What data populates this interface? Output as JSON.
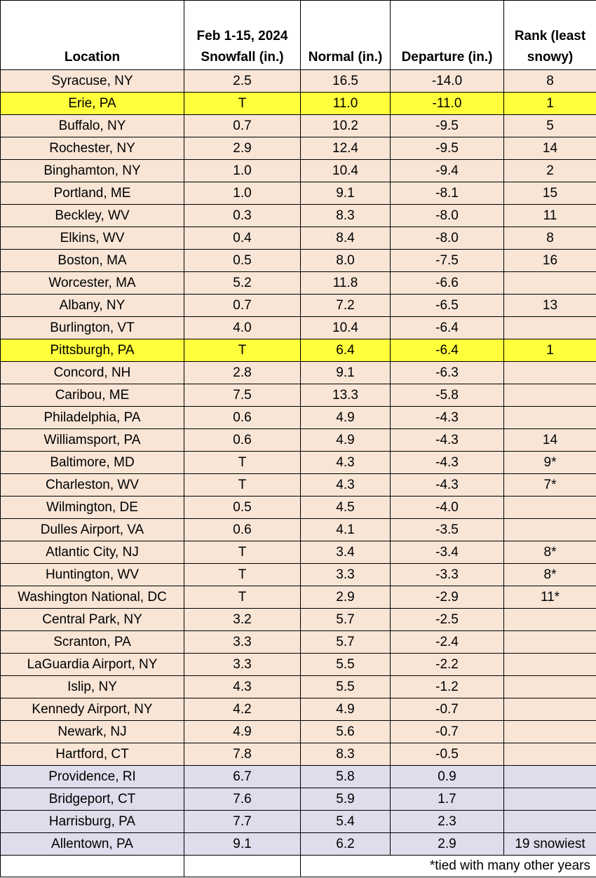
{
  "headers": {
    "location": "Location",
    "snowfall_line1": "Feb 1-15, 2024",
    "snowfall_line2": "Snowfall (in.)",
    "normal": "Normal (in.)",
    "departure": "Departure (in.)",
    "rank_line1": "Rank (least",
    "rank_line2": "snowy)"
  },
  "colors": {
    "below_normal_fill": "#f8e5d6",
    "record_fill": "#ffff3c",
    "above_normal_fill": "#dfdceb"
  },
  "rows": [
    {
      "location": "Syracuse, NY",
      "snowfall": "2.5",
      "normal": "16.5",
      "departure": "-14.0",
      "rank": "8",
      "style": "below"
    },
    {
      "location": "Erie, PA",
      "snowfall": "T",
      "normal": "11.0",
      "departure": "-11.0",
      "rank": "1",
      "style": "record"
    },
    {
      "location": "Buffalo, NY",
      "snowfall": "0.7",
      "normal": "10.2",
      "departure": "-9.5",
      "rank": "5",
      "style": "below"
    },
    {
      "location": "Rochester, NY",
      "snowfall": "2.9",
      "normal": "12.4",
      "departure": "-9.5",
      "rank": "14",
      "style": "below"
    },
    {
      "location": "Binghamton, NY",
      "snowfall": "1.0",
      "normal": "10.4",
      "departure": "-9.4",
      "rank": "2",
      "style": "below"
    },
    {
      "location": "Portland, ME",
      "snowfall": "1.0",
      "normal": "9.1",
      "departure": "-8.1",
      "rank": "15",
      "style": "below"
    },
    {
      "location": "Beckley, WV",
      "snowfall": "0.3",
      "normal": "8.3",
      "departure": "-8.0",
      "rank": "11",
      "style": "below"
    },
    {
      "location": "Elkins, WV",
      "snowfall": "0.4",
      "normal": "8.4",
      "departure": "-8.0",
      "rank": "8",
      "style": "below"
    },
    {
      "location": "Boston, MA",
      "snowfall": "0.5",
      "normal": "8.0",
      "departure": "-7.5",
      "rank": "16",
      "style": "below"
    },
    {
      "location": "Worcester, MA",
      "snowfall": "5.2",
      "normal": "11.8",
      "departure": "-6.6",
      "rank": "",
      "style": "below"
    },
    {
      "location": "Albany, NY",
      "snowfall": "0.7",
      "normal": "7.2",
      "departure": "-6.5",
      "rank": "13",
      "style": "below"
    },
    {
      "location": "Burlington, VT",
      "snowfall": "4.0",
      "normal": "10.4",
      "departure": "-6.4",
      "rank": "",
      "style": "below"
    },
    {
      "location": "Pittsburgh, PA",
      "snowfall": "T",
      "normal": "6.4",
      "departure": "-6.4",
      "rank": "1",
      "style": "record"
    },
    {
      "location": "Concord, NH",
      "snowfall": "2.8",
      "normal": "9.1",
      "departure": "-6.3",
      "rank": "",
      "style": "below"
    },
    {
      "location": "Caribou, ME",
      "snowfall": "7.5",
      "normal": "13.3",
      "departure": "-5.8",
      "rank": "",
      "style": "below"
    },
    {
      "location": "Philadelphia, PA",
      "snowfall": "0.6",
      "normal": "4.9",
      "departure": "-4.3",
      "rank": "",
      "style": "below"
    },
    {
      "location": "Williamsport, PA",
      "snowfall": "0.6",
      "normal": "4.9",
      "departure": "-4.3",
      "rank": "14",
      "style": "below"
    },
    {
      "location": "Baltimore, MD",
      "snowfall": "T",
      "normal": "4.3",
      "departure": "-4.3",
      "rank": "9*",
      "style": "below"
    },
    {
      "location": "Charleston, WV",
      "snowfall": "T",
      "normal": "4.3",
      "departure": "-4.3",
      "rank": "7*",
      "style": "below"
    },
    {
      "location": "Wilmington, DE",
      "snowfall": "0.5",
      "normal": "4.5",
      "departure": "-4.0",
      "rank": "",
      "style": "below"
    },
    {
      "location": "Dulles Airport, VA",
      "snowfall": "0.6",
      "normal": "4.1",
      "departure": "-3.5",
      "rank": "",
      "style": "below"
    },
    {
      "location": "Atlantic City, NJ",
      "snowfall": "T",
      "normal": "3.4",
      "departure": "-3.4",
      "rank": "8*",
      "style": "below"
    },
    {
      "location": "Huntington, WV",
      "snowfall": "T",
      "normal": "3.3",
      "departure": "-3.3",
      "rank": "8*",
      "style": "below"
    },
    {
      "location": "Washington National, DC",
      "snowfall": "T",
      "normal": "2.9",
      "departure": "-2.9",
      "rank": "11*",
      "style": "below"
    },
    {
      "location": "Central Park, NY",
      "snowfall": "3.2",
      "normal": "5.7",
      "departure": "-2.5",
      "rank": "",
      "style": "below"
    },
    {
      "location": "Scranton, PA",
      "snowfall": "3.3",
      "normal": "5.7",
      "departure": "-2.4",
      "rank": "",
      "style": "below"
    },
    {
      "location": "LaGuardia Airport, NY",
      "snowfall": "3.3",
      "normal": "5.5",
      "departure": "-2.2",
      "rank": "",
      "style": "below"
    },
    {
      "location": "Islip, NY",
      "snowfall": "4.3",
      "normal": "5.5",
      "departure": "-1.2",
      "rank": "",
      "style": "below"
    },
    {
      "location": "Kennedy Airport, NY",
      "snowfall": "4.2",
      "normal": "4.9",
      "departure": "-0.7",
      "rank": "",
      "style": "below"
    },
    {
      "location": "Newark, NJ",
      "snowfall": "4.9",
      "normal": "5.6",
      "departure": "-0.7",
      "rank": "",
      "style": "below"
    },
    {
      "location": "Hartford, CT",
      "snowfall": "7.8",
      "normal": "8.3",
      "departure": "-0.5",
      "rank": "",
      "style": "below"
    },
    {
      "location": "Providence, RI",
      "snowfall": "6.7",
      "normal": "5.8",
      "departure": "0.9",
      "rank": "",
      "style": "above"
    },
    {
      "location": "Bridgeport, CT",
      "snowfall": "7.6",
      "normal": "5.9",
      "departure": "1.7",
      "rank": "",
      "style": "above"
    },
    {
      "location": "Harrisburg, PA",
      "snowfall": "7.7",
      "normal": "5.4",
      "departure": "2.3",
      "rank": "",
      "style": "above"
    },
    {
      "location": "Allentown, PA",
      "snowfall": "9.1",
      "normal": "6.2",
      "departure": "2.9",
      "rank": "19 snowiest",
      "style": "above"
    }
  ],
  "footnote": "*tied with many other years"
}
